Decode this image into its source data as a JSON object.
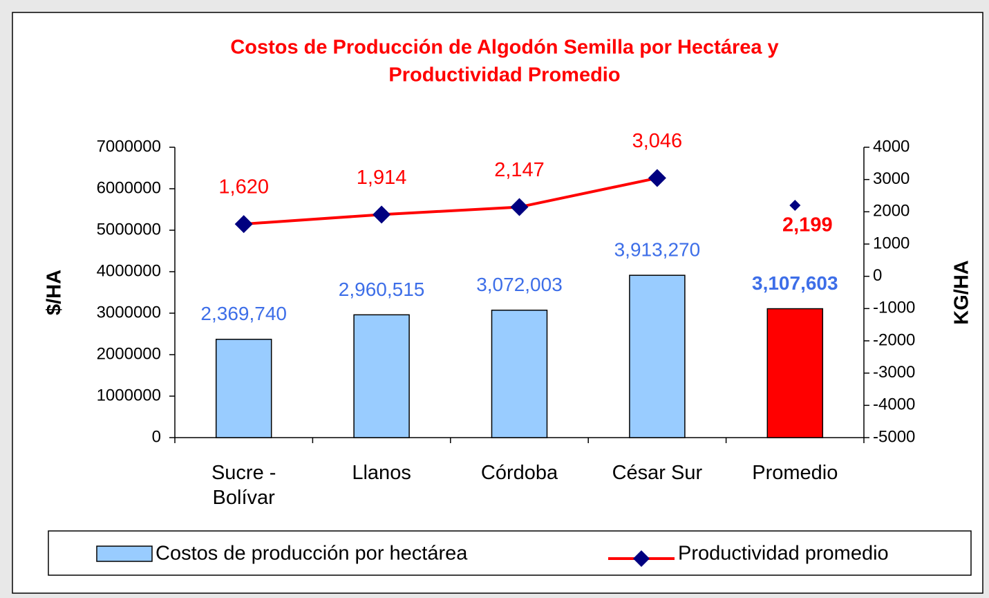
{
  "chart_data": {
    "type": "bar",
    "title": [
      "Costos de Producción de Algodón Semilla por Hectárea y",
      "Productividad Promedio"
    ],
    "y_label": "$/HA",
    "y2_label": "KG/HA",
    "categories": [
      "Sucre - Bolívar",
      "Llanos",
      "Córdoba",
      "César Sur",
      "Promedio"
    ],
    "ylim": [
      0,
      7000000
    ],
    "yticks": [
      0,
      1000000,
      2000000,
      3000000,
      4000000,
      5000000,
      6000000,
      7000000
    ],
    "y2lim": [
      -5000,
      4000
    ],
    "y2ticks": [
      -5000,
      -4000,
      -3000,
      -2000,
      -1000,
      0,
      1000,
      2000,
      3000,
      4000
    ],
    "series": [
      {
        "name": "Costos de producción por hectárea",
        "type": "bar",
        "color": "#99ccff",
        "point_colors": [
          "#99ccff",
          "#99ccff",
          "#99ccff",
          "#99ccff",
          "#ff0000"
        ],
        "values": [
          2369740,
          2960515,
          3072003,
          3913270,
          3107603
        ],
        "value_labels": [
          "2,369,740",
          "2,960,515",
          "3,072,003",
          "3,913,270",
          "3,107,603"
        ],
        "label_color": "#3d6ee8",
        "bold_labels": [
          false,
          false,
          false,
          false,
          true
        ]
      },
      {
        "name": "Productividad promedio",
        "type": "line",
        "axis": "y2",
        "color": "#ff0000",
        "marker_color": "#000080",
        "values": [
          1620,
          1914,
          2147,
          3046,
          2199
        ],
        "value_labels": [
          "1,620",
          "1,914",
          "2,147",
          "3,046",
          "2,199"
        ],
        "connected": [
          true,
          true,
          true,
          true,
          false
        ],
        "label_color": "#ff0000",
        "bold_labels": [
          false,
          false,
          false,
          false,
          true
        ],
        "label_position": [
          "above",
          "above",
          "above",
          "above",
          "below"
        ]
      }
    ],
    "legend": "bottom"
  }
}
